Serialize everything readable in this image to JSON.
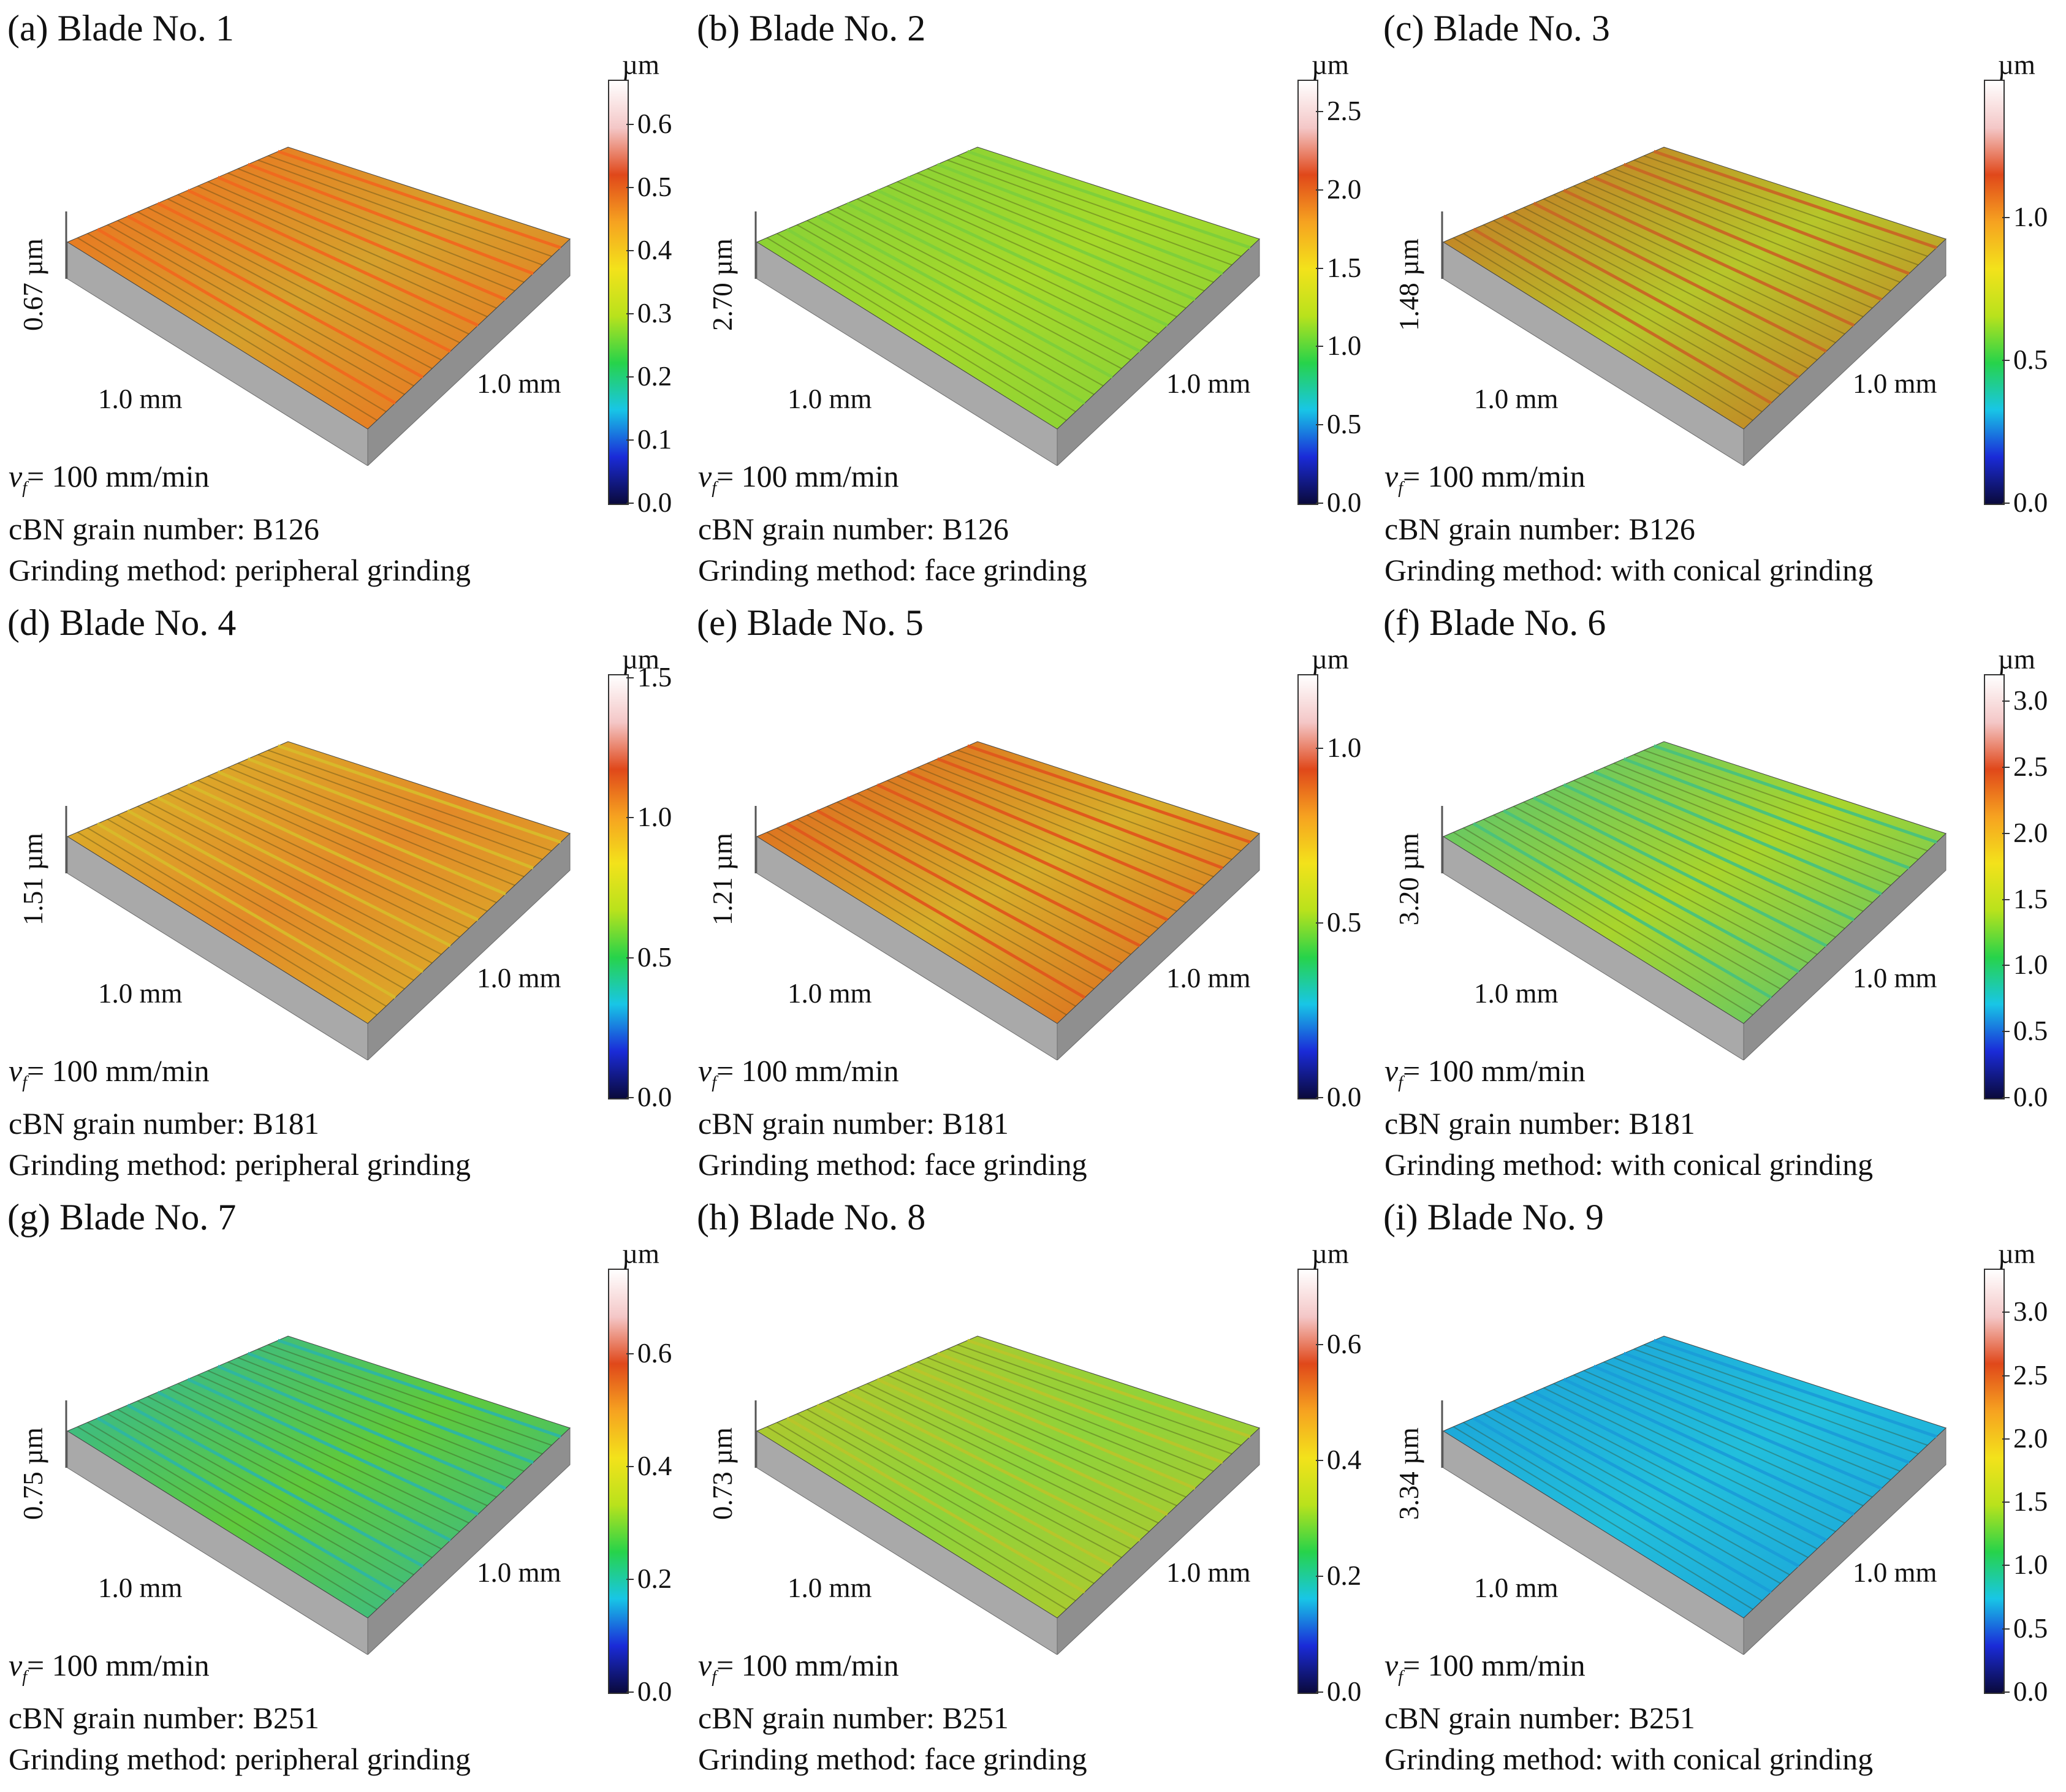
{
  "colorbar_colors": [
    "#0a0a3c",
    "#1a2bd8",
    "#18c6e6",
    "#27d34a",
    "#b9e21c",
    "#f3e21b",
    "#f6a220",
    "#e0481a",
    "#f4c7c7",
    "#ffffff"
  ],
  "panels": [
    {
      "title": "(a) Blade No. 1",
      "height_label": "0.67 µm",
      "x_label": "1.0 mm",
      "y_label": "1.0 mm",
      "unit": "µm",
      "ticks": [
        "0.0",
        "0.1",
        "0.2",
        "0.3",
        "0.4",
        "0.5",
        "0.6"
      ],
      "cmax": 0.67,
      "vf_symbol": "v",
      "vf_sub": "f",
      "vf_text": "= 100 mm/min",
      "grain": "cBN grain number: B126",
      "method": "Grinding method: peripheral grinding",
      "surface_color": "#d6a12c",
      "surface_color2": "#f06a1e"
    },
    {
      "title": "(b) Blade No. 2",
      "height_label": "2.70 µm",
      "x_label": "1.0 mm",
      "y_label": "1.0 mm",
      "unit": "µm",
      "ticks": [
        "0.0",
        "0.5",
        "1.0",
        "1.5",
        "2.0",
        "2.5"
      ],
      "cmax": 2.7,
      "vf_symbol": "v",
      "vf_sub": "f",
      "vf_text": "= 100 mm/min",
      "grain": "cBN grain number: B126",
      "method": "Grinding method: face grinding",
      "surface_color": "#a6d92a",
      "surface_color2": "#7fcf3a"
    },
    {
      "title": "(c) Blade No. 3",
      "height_label": "1.48 µm",
      "x_label": "1.0 mm",
      "y_label": "1.0 mm",
      "unit": "µm",
      "ticks": [
        "0.0",
        "0.5",
        "1.0"
      ],
      "cmax": 1.48,
      "vf_symbol": "v",
      "vf_sub": "f",
      "vf_text": "= 100 mm/min",
      "grain": "cBN grain number: B126",
      "method": "Grinding method: with conical grinding",
      "surface_color": "#b7c62a",
      "surface_color2": "#c86a24"
    },
    {
      "title": "(d) Blade No. 4",
      "height_label": "1.51 µm",
      "x_label": "1.0 mm",
      "y_label": "1.0 mm",
      "unit": "µm",
      "ticks": [
        "0.0",
        "0.5",
        "1.0",
        "1.5"
      ],
      "cmax": 1.51,
      "vf_symbol": "v",
      "vf_sub": "f",
      "vf_text": "= 100 mm/min",
      "grain": "cBN grain number: B181",
      "method": "Grinding method: peripheral grinding",
      "surface_color": "#e38a28",
      "surface_color2": "#d8b92a"
    },
    {
      "title": "(e) Blade No. 5",
      "height_label": "1.21 µm",
      "x_label": "1.0 mm",
      "y_label": "1.0 mm",
      "unit": "µm",
      "ticks": [
        "0.0",
        "0.5",
        "1.0"
      ],
      "cmax": 1.21,
      "vf_symbol": "v",
      "vf_sub": "f",
      "vf_text": "= 100 mm/min",
      "grain": "cBN grain number: B181",
      "method": "Grinding method: face grinding",
      "surface_color": "#d8ae2a",
      "surface_color2": "#e05a1c"
    },
    {
      "title": "(f) Blade No. 6",
      "height_label": "3.20 µm",
      "x_label": "1.0 mm",
      "y_label": "1.0 mm",
      "unit": "µm",
      "ticks": [
        "0.0",
        "0.5",
        "1.0",
        "1.5",
        "2.0",
        "2.5",
        "3.0"
      ],
      "cmax": 3.2,
      "vf_symbol": "v",
      "vf_sub": "f",
      "vf_text": "= 100 mm/min",
      "grain": "cBN grain number: B181",
      "method": "Grinding method: with conical grinding",
      "surface_color": "#a9d52c",
      "surface_color2": "#4cc27a"
    },
    {
      "title": "(g) Blade No. 7",
      "height_label": "0.75 µm",
      "x_label": "1.0 mm",
      "y_label": "1.0 mm",
      "unit": "µm",
      "ticks": [
        "0.0",
        "0.2",
        "0.4",
        "0.6"
      ],
      "cmax": 0.75,
      "vf_symbol": "v",
      "vf_sub": "f",
      "vf_text": "= 100 mm/min",
      "grain": "cBN grain number: B251",
      "method": "Grinding method: peripheral grinding",
      "surface_color": "#5fca3c",
      "surface_color2": "#2fb6a0"
    },
    {
      "title": "(h) Blade No. 8",
      "height_label": "0.73 µm",
      "x_label": "1.0 mm",
      "y_label": "1.0 mm",
      "unit": "µm",
      "ticks": [
        "0.0",
        "0.2",
        "0.4",
        "0.6"
      ],
      "cmax": 0.73,
      "vf_symbol": "v",
      "vf_sub": "f",
      "vf_text": "= 100 mm/min",
      "grain": "cBN grain number: B251",
      "method": "Grinding method: face grinding",
      "surface_color": "#8fd33a",
      "surface_color2": "#b9c52a"
    },
    {
      "title": "(i) Blade No. 9",
      "height_label": "3.34 µm",
      "x_label": "1.0 mm",
      "y_label": "1.0 mm",
      "unit": "µm",
      "ticks": [
        "0.0",
        "0.5",
        "1.0",
        "1.5",
        "2.0",
        "2.5",
        "3.0"
      ],
      "cmax": 3.34,
      "vf_symbol": "v",
      "vf_sub": "f",
      "vf_text": "= 100 mm/min",
      "grain": "cBN grain number: B251",
      "method": "Grinding method: with conical grinding",
      "surface_color": "#22bfdc",
      "surface_color2": "#1a9ed8"
    }
  ]
}
